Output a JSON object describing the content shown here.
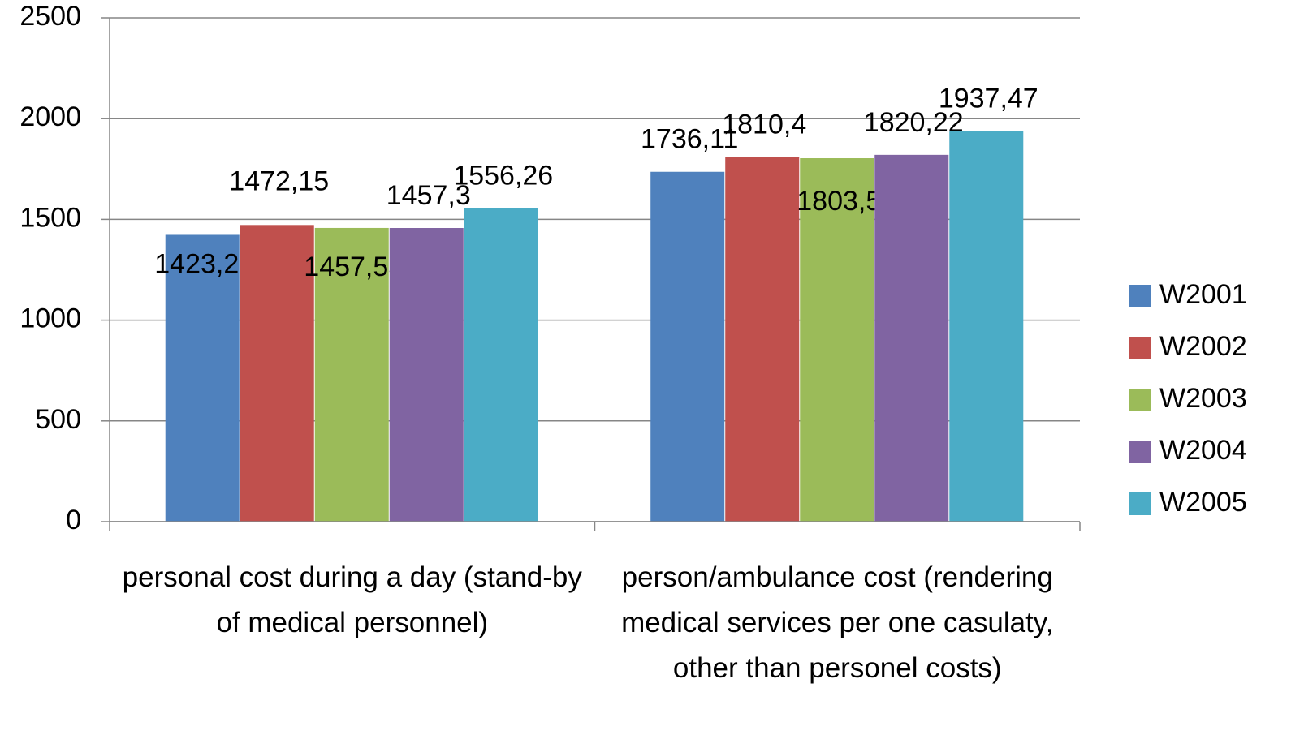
{
  "chart_data": {
    "type": "bar",
    "categories": [
      "personal cost during a day (stand-by of medical personnel)",
      "person/ambulance cost (rendering medical services per one casulaty, other than personel costs)"
    ],
    "series": [
      {
        "name": "W2001",
        "color": "#4f81bd",
        "values": [
          1423.21,
          1736.11
        ],
        "value_labels": [
          "1423,21",
          "1736,11"
        ]
      },
      {
        "name": "W2002",
        "color": "#c0504d",
        "values": [
          1472.15,
          1810.4
        ],
        "value_labels": [
          "1472,15",
          "1810,4"
        ]
      },
      {
        "name": "W2003",
        "color": "#9bbb59",
        "values": [
          1457.53,
          1803.5
        ],
        "value_labels": [
          "1457,53",
          "1803,5"
        ]
      },
      {
        "name": "W2004",
        "color": "#8064a2",
        "values": [
          1457.3,
          1820.22
        ],
        "value_labels": [
          "1457,3",
          "1820,22"
        ]
      },
      {
        "name": "W2005",
        "color": "#4bacc6",
        "values": [
          1556.26,
          1937.47
        ],
        "value_labels": [
          "1556,26",
          "1937,47"
        ]
      }
    ],
    "ylim": [
      0,
      2500
    ],
    "yticks": [
      0,
      500,
      1000,
      1500,
      2000,
      2500
    ],
    "grid": true,
    "legend": "right"
  }
}
